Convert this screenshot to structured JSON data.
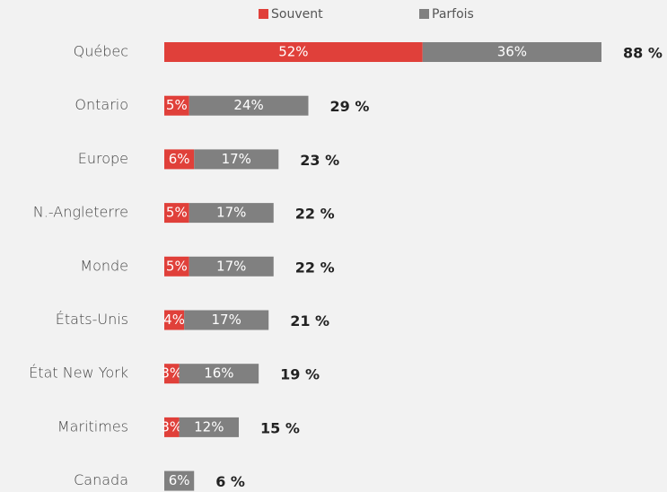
{
  "chart_data": {
    "type": "stacked_bar_horizontal",
    "categories": [
      "Québec",
      "Ontario",
      "Europe",
      "N.-Angleterre",
      "Monde",
      "États-Unis",
      "État New York",
      "Maritimes",
      "Canada"
    ],
    "series": [
      {
        "name": "Souvent",
        "color": "#e0403a",
        "values": [
          52,
          5,
          6,
          5,
          5,
          4,
          3,
          3,
          null
        ],
        "value_labels": [
          "52%",
          "5%",
          "6%",
          "5%",
          "5%",
          "4%",
          "3%",
          "3%",
          null
        ]
      },
      {
        "name": "Parfois",
        "color": "#808080",
        "values": [
          36,
          24,
          17,
          17,
          17,
          17,
          16,
          12,
          6
        ],
        "value_labels": [
          "36%",
          "24%",
          "17%",
          "17%",
          "17%",
          "17%",
          "16%",
          "12%",
          "6%"
        ]
      }
    ],
    "totals": [
      88,
      29,
      23,
      22,
      22,
      21,
      19,
      15,
      6
    ],
    "total_labels": [
      "88 %",
      "29 %",
      "23 %",
      "22 %",
      "22 %",
      "21 %",
      "19 %",
      "15 %",
      "6 %"
    ],
    "legend": "top"
  }
}
